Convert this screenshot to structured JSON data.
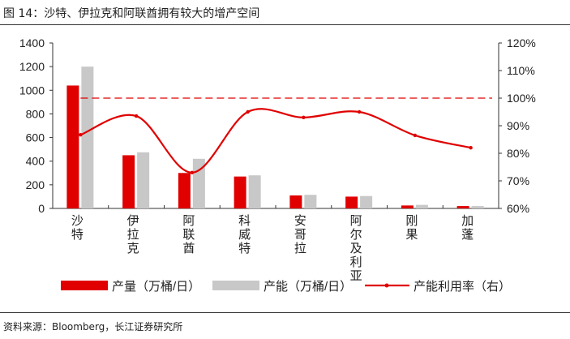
{
  "title": "图 14：沙特、伊拉克和阿联酋拥有较大的增产空间",
  "source": "资料来源：Bloomberg，长江证券研究所",
  "chart_data": {
    "type": "bar+line",
    "categories": [
      "沙特",
      "伊拉克",
      "阿联酋",
      "科威特",
      "安哥拉",
      "阿尔及利亚",
      "刚果",
      "加蓬"
    ],
    "series": [
      {
        "name": "产量（万桶/日）",
        "type": "bar",
        "axis": "left",
        "color": "#e00000",
        "values": [
          1040,
          450,
          300,
          270,
          110,
          100,
          25,
          20
        ]
      },
      {
        "name": "产能（万桶/日）",
        "type": "bar",
        "axis": "left",
        "color": "#c8c8c8",
        "values": [
          1200,
          475,
          420,
          280,
          115,
          105,
          30,
          20
        ]
      },
      {
        "name": "产能利用率（右）",
        "type": "line",
        "axis": "right",
        "color": "#e00000",
        "values": [
          86.7,
          93.5,
          73,
          95,
          93,
          95,
          86.5,
          82
        ]
      }
    ],
    "reference_line": {
      "axis": "right",
      "value": 100,
      "style": "dashed",
      "color": "#e00000"
    },
    "left_axis": {
      "ylim": [
        0,
        1400
      ],
      "ticks": [
        "0",
        "200",
        "400",
        "600",
        "800",
        "1000",
        "1200",
        "1400"
      ]
    },
    "right_axis": {
      "ylim": [
        60,
        120
      ],
      "ticks": [
        "60%",
        "70%",
        "80%",
        "90%",
        "100%",
        "110%",
        "120%"
      ]
    },
    "legend": "bottom",
    "grid": false
  }
}
